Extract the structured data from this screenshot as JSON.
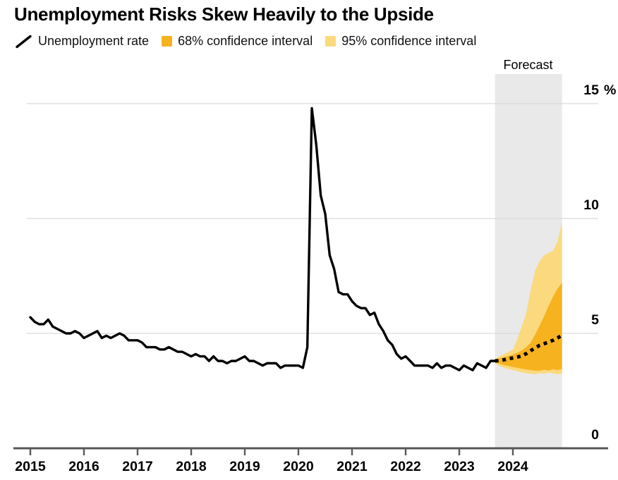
{
  "title": "Unemployment Risks Skew Heavily to the Upside",
  "legend": [
    {
      "label": "Unemployment rate",
      "type": "line-slash",
      "color": "#000000"
    },
    {
      "label": "68% confidence interval",
      "type": "swatch",
      "color": "#F7B220"
    },
    {
      "label": "95% confidence interval",
      "type": "swatch",
      "color": "#FBD97E"
    }
  ],
  "forecast_label": "Forecast",
  "chart_data": {
    "type": "line",
    "title": "Unemployment Risks Skew Heavily to the Upside",
    "xlabel": "",
    "ylabel": "%",
    "ylim": [
      0,
      15
    ],
    "grid": "horizontal",
    "legend_position": "top",
    "x_tick_labels": [
      "2015",
      "2016",
      "2017",
      "2018",
      "2019",
      "2020",
      "2021",
      "2022",
      "2023",
      "2024"
    ],
    "y_ticks": [
      {
        "value": 0,
        "label": "0",
        "suffix": ""
      },
      {
        "value": 5,
        "label": "5",
        "suffix": ""
      },
      {
        "value": 10,
        "label": "10",
        "suffix": ""
      },
      {
        "value": 15,
        "label": "15",
        "suffix": "%"
      }
    ],
    "history": {
      "name": "Unemployment rate",
      "freq": "monthly",
      "start": "2015-01",
      "values": [
        5.7,
        5.5,
        5.4,
        5.4,
        5.6,
        5.3,
        5.2,
        5.1,
        5.0,
        5.0,
        5.1,
        5.0,
        4.8,
        4.9,
        5.0,
        5.1,
        4.8,
        4.9,
        4.8,
        4.9,
        5.0,
        4.9,
        4.7,
        4.7,
        4.7,
        4.6,
        4.4,
        4.4,
        4.4,
        4.3,
        4.3,
        4.4,
        4.3,
        4.2,
        4.2,
        4.1,
        4.0,
        4.1,
        4.0,
        4.0,
        3.8,
        4.0,
        3.8,
        3.8,
        3.7,
        3.8,
        3.8,
        3.9,
        4.0,
        3.8,
        3.8,
        3.7,
        3.6,
        3.7,
        3.7,
        3.7,
        3.5,
        3.6,
        3.6,
        3.6,
        3.6,
        3.5,
        4.4,
        14.8,
        13.2,
        11.0,
        10.2,
        8.4,
        7.8,
        6.8,
        6.7,
        6.7,
        6.4,
        6.2,
        6.1,
        6.1,
        5.8,
        5.9,
        5.4,
        5.1,
        4.7,
        4.5,
        4.1,
        3.9,
        4.0,
        3.8,
        3.6,
        3.6,
        3.6,
        3.6,
        3.5,
        3.7,
        3.5,
        3.6,
        3.6,
        3.5,
        3.4,
        3.6,
        3.5,
        3.4,
        3.7,
        3.6,
        3.5,
        3.8,
        3.8
      ]
    },
    "forecast": {
      "name": "Forecast (median, dotted)",
      "freq": "monthly",
      "start": "2023-09",
      "median": [
        3.8,
        3.82,
        3.85,
        3.9,
        3.93,
        3.97,
        4.02,
        4.12,
        4.25,
        4.37,
        4.48,
        4.55,
        4.63,
        4.7,
        4.8,
        4.93
      ],
      "ci68_upper": [
        3.85,
        3.92,
        3.97,
        4.02,
        4.08,
        4.16,
        4.26,
        4.4,
        4.6,
        4.95,
        5.35,
        5.75,
        6.2,
        6.6,
        6.95,
        7.2
      ],
      "ci68_lower": [
        3.75,
        3.68,
        3.62,
        3.58,
        3.54,
        3.5,
        3.46,
        3.43,
        3.4,
        3.38,
        3.37,
        3.42,
        3.38,
        3.44,
        3.4,
        3.45
      ],
      "ci95_upper": [
        3.9,
        4.0,
        4.1,
        4.2,
        4.3,
        4.75,
        5.3,
        5.9,
        6.9,
        7.75,
        8.15,
        8.4,
        8.5,
        8.6,
        9.0,
        9.85
      ],
      "ci95_lower": [
        3.7,
        3.58,
        3.5,
        3.44,
        3.4,
        3.35,
        3.3,
        3.27,
        3.24,
        3.22,
        3.28,
        3.24,
        3.3,
        3.26,
        3.22,
        3.25
      ]
    },
    "forecast_region": {
      "start": "2023-09",
      "end": "2024-12",
      "label": "Forecast"
    },
    "colors": {
      "line": "#000000",
      "ci68": "#F7B220",
      "ci95": "#FBD97E",
      "forecast_region_bg": "#E9E9E9",
      "gridline": "#D9D9D9",
      "axis": "#58585A"
    }
  }
}
